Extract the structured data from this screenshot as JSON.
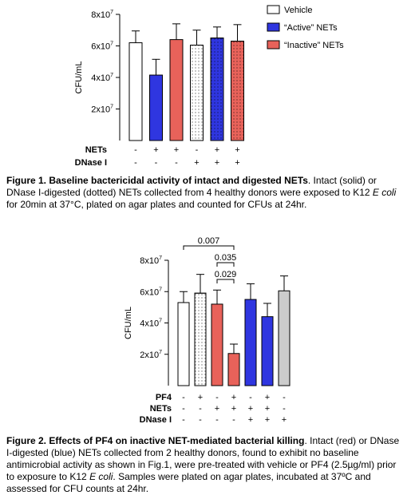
{
  "chart_data": [
    {
      "type": "bar",
      "ylabel": "CFU/mL",
      "ylim": [
        0,
        80000000
      ],
      "yticks": [
        {
          "value": 20000000,
          "mant": "2x10",
          "exp": "7"
        },
        {
          "value": 40000000,
          "mant": "4x10",
          "exp": "7"
        },
        {
          "value": 60000000,
          "mant": "6x10",
          "exp": "7"
        },
        {
          "value": 80000000,
          "mant": "8x10",
          "exp": "7"
        }
      ],
      "bars": [
        {
          "value": 62000000,
          "error": 7500000,
          "fill": "#ffffff",
          "pattern": "solid"
        },
        {
          "value": 41500000,
          "error": 10000000,
          "fill": "#2f36e0",
          "pattern": "solid"
        },
        {
          "value": 64000000,
          "error": 10000000,
          "fill": "#e8625a",
          "pattern": "solid"
        },
        {
          "value": 60500000,
          "error": 9500000,
          "fill": "#ffffff",
          "pattern": "dotted"
        },
        {
          "value": 65000000,
          "error": 7000000,
          "fill": "#2f36e0",
          "pattern": "dotted"
        },
        {
          "value": 63000000,
          "error": 10500000,
          "fill": "#e8625a",
          "pattern": "dotted"
        }
      ],
      "conditions": [
        {
          "label": "NETs",
          "signs": [
            "-",
            "+",
            "+",
            "-",
            "+",
            "+"
          ]
        },
        {
          "label": "DNase I",
          "signs": [
            "-",
            "-",
            "-",
            "+",
            "+",
            "+"
          ]
        }
      ],
      "legend": [
        {
          "label": "Vehicle",
          "fill": "#ffffff"
        },
        {
          "label": "“Active” NETs",
          "fill": "#2f36e0"
        },
        {
          "label": "“Inactive” NETs",
          "fill": "#e8625a"
        }
      ],
      "legend_position": "top-right"
    },
    {
      "type": "bar",
      "ylabel": "CFU/mL",
      "ylim": [
        0,
        80000000
      ],
      "yticks": [
        {
          "value": 20000000,
          "mant": "2x10",
          "exp": "7"
        },
        {
          "value": 40000000,
          "mant": "4x10",
          "exp": "7"
        },
        {
          "value": 60000000,
          "mant": "6x10",
          "exp": "7"
        },
        {
          "value": 80000000,
          "mant": "8x10",
          "exp": "7"
        }
      ],
      "bars": [
        {
          "value": 53000000,
          "error": 7000000,
          "fill": "#ffffff",
          "pattern": "solid"
        },
        {
          "value": 59000000,
          "error": 12000000,
          "fill": "#ffffff",
          "pattern": "dotted"
        },
        {
          "value": 52000000,
          "error": 9000000,
          "fill": "#e8625a",
          "pattern": "solid"
        },
        {
          "value": 20500000,
          "error": 6000000,
          "fill": "#e8625a",
          "pattern": "solid"
        },
        {
          "value": 55000000,
          "error": 10000000,
          "fill": "#2f36e0",
          "pattern": "solid"
        },
        {
          "value": 44000000,
          "error": 8500000,
          "fill": "#2f36e0",
          "pattern": "solid"
        },
        {
          "value": 60500000,
          "error": 9500000,
          "fill": "#cccccc",
          "pattern": "solid"
        }
      ],
      "conditions": [
        {
          "label": "PF4",
          "signs": [
            "-",
            "+",
            "-",
            "+",
            "-",
            "+",
            "-"
          ]
        },
        {
          "label": "NETs",
          "signs": [
            "-",
            "-",
            "+",
            "+",
            "+",
            "+",
            "-"
          ]
        },
        {
          "label": "DNase I",
          "signs": [
            "-",
            "-",
            "-",
            "-",
            "+",
            "+",
            "+"
          ]
        }
      ],
      "annotations": [
        {
          "text": "0.007",
          "from": 0,
          "to": 3
        },
        {
          "text": "0.035",
          "from": 2,
          "to": 3
        },
        {
          "text": "0.029",
          "from": 2,
          "to": 3
        }
      ]
    }
  ],
  "captions": {
    "fig1": {
      "bold": "Figure 1. Baseline bactericidal activity of intact and digested NETs",
      "t1": ". Intact (solid) or DNase I-digested (dotted) NETs collected from 4 healthy donors were exposed to K12 ",
      "italic": "E coli",
      "t2": " for 20min at 37°C, plated on agar plates and counted for CFUs at 24hr."
    },
    "fig2": {
      "bold": "Figure 2. Effects of PF4 on inactive NET-mediated bacterial killing",
      "t1": ". Intact (red) or DNase I-digested (blue) NETs collected from 2 healthy donors, found to exhibit no baseline antimicrobial activity as shown in Fig.1, were pre-treated with vehicle or PF4 (2.5µg/ml) prior to exposure to K12 ",
      "italic": "E coli",
      "t2": ". Samples were plated on agar plates, incubated at 37ºC and assessed for CFU counts at 24hr."
    }
  }
}
